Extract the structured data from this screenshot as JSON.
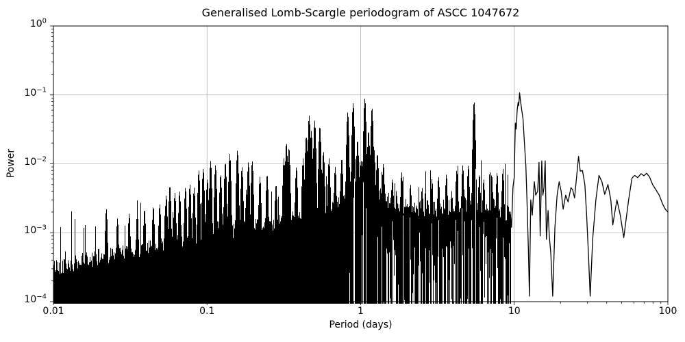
{
  "chart_data": {
    "type": "line",
    "title": "Generalised Lomb-Scargle periodogram of ASCC 1047672",
    "xlabel": "Period (days)",
    "ylabel": "Power",
    "x_scale": "log",
    "y_scale": "log",
    "xlim": [
      0.01,
      100
    ],
    "ylim": [
      0.0001,
      1
    ],
    "grid": {
      "which": "major",
      "color": "#b0b0b0"
    },
    "line_color": "#000000",
    "background_color": "#ffffff",
    "x_ticks": [
      {
        "v": 0.01,
        "label": "0.01"
      },
      {
        "v": 0.1,
        "label": "0.1"
      },
      {
        "v": 1,
        "label": "1"
      },
      {
        "v": 10,
        "label": "10"
      },
      {
        "v": 100,
        "label": "100"
      }
    ],
    "y_ticks": [
      {
        "v": 1,
        "base": "10",
        "exp": "0"
      },
      {
        "v": 0.1,
        "base": "10",
        "exp": "−1"
      },
      {
        "v": 0.01,
        "base": "10",
        "exp": "−2"
      },
      {
        "v": 0.001,
        "base": "10",
        "exp": "−3"
      },
      {
        "v": 0.0001,
        "base": "10",
        "exp": "−4"
      }
    ],
    "peaks": [
      [
        0.022,
        0.0022
      ],
      [
        0.026,
        0.0016
      ],
      [
        0.031,
        0.0019
      ],
      [
        0.035,
        0.002
      ],
      [
        0.039,
        0.0022
      ],
      [
        0.0445,
        0.0024
      ],
      [
        0.049,
        0.0026
      ],
      [
        0.054,
        0.0035
      ],
      [
        0.057,
        0.0048
      ],
      [
        0.0615,
        0.0038
      ],
      [
        0.066,
        0.004
      ],
      [
        0.072,
        0.0045
      ],
      [
        0.077,
        0.005
      ],
      [
        0.082,
        0.0045
      ],
      [
        0.088,
        0.008
      ],
      [
        0.094,
        0.0085
      ],
      [
        0.1,
        0.006
      ],
      [
        0.105,
        0.011
      ],
      [
        0.113,
        0.0095
      ],
      [
        0.122,
        0.007
      ],
      [
        0.131,
        0.0105
      ],
      [
        0.14,
        0.014
      ],
      [
        0.157,
        0.0155
      ],
      [
        0.168,
        0.009
      ],
      [
        0.185,
        0.0105
      ],
      [
        0.196,
        0.011
      ],
      [
        0.22,
        0.0065
      ],
      [
        0.245,
        0.007
      ],
      [
        0.28,
        0.005
      ],
      [
        0.315,
        0.012
      ],
      [
        0.327,
        0.02
      ],
      [
        0.34,
        0.017
      ],
      [
        0.38,
        0.009
      ],
      [
        0.42,
        0.012
      ],
      [
        0.44,
        0.025
      ],
      [
        0.46,
        0.05
      ],
      [
        0.475,
        0.03
      ],
      [
        0.5,
        0.042
      ],
      [
        0.54,
        0.035
      ],
      [
        0.57,
        0.015
      ],
      [
        0.62,
        0.012
      ],
      [
        0.68,
        0.009
      ],
      [
        0.75,
        0.012
      ],
      [
        0.82,
        0.056
      ],
      [
        0.89,
        0.076
      ],
      [
        0.95,
        0.022
      ],
      [
        1.06,
        0.088
      ],
      [
        1.12,
        0.03
      ],
      [
        1.18,
        0.065
      ],
      [
        1.28,
        0.014
      ],
      [
        1.4,
        0.01
      ],
      [
        1.6,
        0.006
      ],
      [
        1.84,
        0.0075
      ],
      [
        2.1,
        0.005
      ],
      [
        2.5,
        0.0045
      ],
      [
        2.9,
        0.006
      ],
      [
        3.2,
        0.0065
      ],
      [
        3.6,
        0.007
      ],
      [
        3.9,
        0.004
      ],
      [
        4.2,
        0.008
      ],
      [
        4.6,
        0.0095
      ],
      [
        5.0,
        0.0095
      ],
      [
        5.45,
        0.08
      ],
      [
        5.9,
        0.007
      ],
      [
        6.3,
        0.006
      ],
      [
        7.1,
        0.007
      ],
      [
        7.7,
        0.0075
      ],
      [
        8.4,
        0.0082
      ]
    ],
    "noise_envelope": [
      [
        0.01,
        0.00032
      ],
      [
        0.015,
        0.00038
      ],
      [
        0.02,
        0.00045
      ],
      [
        0.03,
        0.00052
      ],
      [
        0.05,
        0.00065
      ],
      [
        0.07,
        0.00075
      ],
      [
        0.1,
        0.0009
      ],
      [
        0.15,
        0.0011
      ],
      [
        0.2,
        0.0012
      ],
      [
        0.3,
        0.0015
      ],
      [
        0.5,
        0.002
      ],
      [
        0.7,
        0.0028
      ],
      [
        0.85,
        0.005
      ],
      [
        1.0,
        0.009
      ],
      [
        1.15,
        0.006
      ],
      [
        1.3,
        0.0035
      ],
      [
        1.6,
        0.0028
      ],
      [
        2.0,
        0.0024
      ],
      [
        3.0,
        0.0022
      ],
      [
        4.0,
        0.0024
      ],
      [
        5.0,
        0.0026
      ],
      [
        6.0,
        0.0024
      ],
      [
        7.0,
        0.0026
      ],
      [
        8.0,
        0.0022
      ],
      [
        9.4,
        0.0018
      ]
    ],
    "smooth_tail": [
      [
        9.4,
        0.002
      ],
      [
        9.6,
        0.0012
      ],
      [
        9.8,
        0.0045
      ],
      [
        10.0,
        0.0065
      ],
      [
        10.1,
        0.02
      ],
      [
        10.17,
        0.039
      ],
      [
        10.3,
        0.032
      ],
      [
        10.45,
        0.06
      ],
      [
        10.6,
        0.078
      ],
      [
        10.7,
        0.07
      ],
      [
        10.83,
        0.107
      ],
      [
        11.0,
        0.08
      ],
      [
        11.17,
        0.062
      ],
      [
        11.4,
        0.045
      ],
      [
        11.65,
        0.02
      ],
      [
        11.9,
        0.0092
      ],
      [
        12.1,
        0.003
      ],
      [
        12.35,
        0.0006
      ],
      [
        12.55,
        0.00012
      ],
      [
        12.8,
        0.003
      ],
      [
        13.1,
        0.0018
      ],
      [
        13.5,
        0.0055
      ],
      [
        13.8,
        0.0035
      ],
      [
        14.2,
        0.004
      ],
      [
        14.5,
        0.0105
      ],
      [
        14.75,
        0.0009
      ],
      [
        15.1,
        0.011
      ],
      [
        15.35,
        0.0035
      ],
      [
        15.6,
        0.0045
      ],
      [
        15.9,
        0.011
      ],
      [
        16.2,
        0.0008
      ],
      [
        16.6,
        0.0021
      ],
      [
        16.9,
        0.0009
      ],
      [
        17.3,
        0.0005
      ],
      [
        17.8,
        0.00012
      ],
      [
        18.4,
        0.0012
      ],
      [
        19.0,
        0.0035
      ],
      [
        19.6,
        0.0055
      ],
      [
        20.2,
        0.004
      ],
      [
        20.8,
        0.0022
      ],
      [
        21.6,
        0.0035
      ],
      [
        22.4,
        0.0028
      ],
      [
        23.4,
        0.0045
      ],
      [
        24.0,
        0.0042
      ],
      [
        24.7,
        0.0032
      ],
      [
        26.2,
        0.0128
      ],
      [
        26.9,
        0.0078
      ],
      [
        27.8,
        0.008
      ],
      [
        28.8,
        0.005
      ],
      [
        29.6,
        0.0018
      ],
      [
        30.4,
        0.0005
      ],
      [
        31.2,
        0.00012
      ],
      [
        32.4,
        0.0008
      ],
      [
        34.0,
        0.003
      ],
      [
        35.6,
        0.0068
      ],
      [
        37.2,
        0.0055
      ],
      [
        38.8,
        0.0036
      ],
      [
        40.7,
        0.005
      ],
      [
        42.5,
        0.003
      ],
      [
        43.8,
        0.0013
      ],
      [
        45.5,
        0.0022
      ],
      [
        46.6,
        0.003
      ],
      [
        49.0,
        0.0018
      ],
      [
        51.6,
        0.00085
      ],
      [
        55.5,
        0.003
      ],
      [
        58.4,
        0.0062
      ],
      [
        60.8,
        0.0068
      ],
      [
        63.6,
        0.0063
      ],
      [
        66.9,
        0.0072
      ],
      [
        69.8,
        0.0067
      ],
      [
        72.7,
        0.0073
      ],
      [
        75.8,
        0.0065
      ],
      [
        79.5,
        0.005
      ],
      [
        83.6,
        0.0042
      ],
      [
        87.9,
        0.0035
      ],
      [
        92.5,
        0.0026
      ],
      [
        96.2,
        0.0022
      ],
      [
        100,
        0.002
      ]
    ],
    "noise_fill": {
      "seed": 42,
      "dense_until_period": 9.4,
      "solid_fill_below_period": 0.78,
      "spike_probability": 0.11,
      "texture_decades": 0.24
    }
  }
}
